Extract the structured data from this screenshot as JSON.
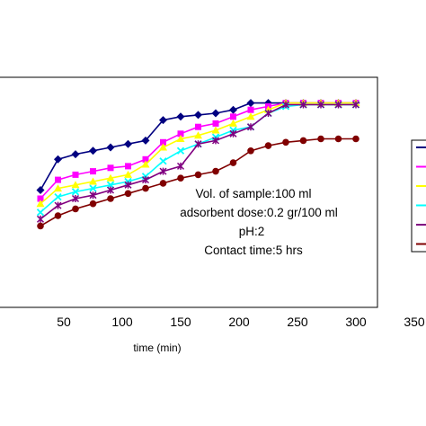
{
  "chart_data": {
    "type": "line",
    "title": "",
    "xlabel": "time (min)",
    "ylabel": "",
    "xlim": [
      0,
      350
    ],
    "ylim": [
      0,
      100
    ],
    "x_ticks": [
      "50",
      "100",
      "150",
      "200",
      "250",
      "300",
      "350"
    ],
    "grid": false,
    "legend_position": "right",
    "annotations": [
      "Vol. of sample:100 ml",
      "adsorbent dose:0.2 gr/100 ml",
      "pH:2",
      "Contact time:5 hrs"
    ],
    "series": [
      {
        "color": "#000080",
        "marker": "diamond",
        "x": [
          30,
          45,
          60,
          75,
          90,
          105,
          120,
          135,
          150,
          165,
          180,
          195,
          210,
          225,
          240,
          255,
          270,
          285,
          300
        ],
        "y": [
          35,
          53,
          56,
          58,
          60,
          62,
          64,
          76,
          78,
          79,
          80,
          82,
          86,
          86,
          86,
          86,
          86,
          86,
          86
        ]
      },
      {
        "color": "#FF00FF",
        "marker": "square",
        "x": [
          30,
          45,
          60,
          75,
          90,
          105,
          120,
          135,
          150,
          165,
          180,
          195,
          210,
          225,
          240,
          255,
          270,
          285,
          300
        ],
        "y": [
          30,
          41,
          44,
          46,
          48,
          49,
          53,
          63,
          68,
          72,
          74,
          78,
          82,
          84,
          86,
          86,
          86,
          86,
          86
        ]
      },
      {
        "color": "#FFFF00",
        "marker": "triangle",
        "x": [
          30,
          45,
          60,
          75,
          90,
          105,
          120,
          135,
          150,
          165,
          180,
          195,
          210,
          225,
          240,
          255,
          270,
          285,
          300
        ],
        "y": [
          27,
          36,
          38,
          40,
          42,
          44,
          50,
          60,
          65,
          67,
          70,
          74,
          78,
          82,
          86,
          86,
          86,
          86,
          86
        ]
      },
      {
        "color": "#00FFFF",
        "marker": "x",
        "x": [
          30,
          45,
          60,
          75,
          90,
          105,
          120,
          135,
          150,
          165,
          180,
          195,
          210,
          225,
          240,
          255,
          270,
          285,
          300
        ],
        "y": [
          22,
          31,
          34,
          36,
          38,
          40,
          43,
          52,
          58,
          62,
          66,
          70,
          72,
          80,
          84,
          85,
          85,
          85,
          85
        ]
      },
      {
        "color": "#800080",
        "marker": "star",
        "x": [
          30,
          45,
          60,
          75,
          90,
          105,
          120,
          135,
          150,
          165,
          180,
          195,
          210,
          225,
          240,
          255,
          270,
          285,
          300
        ],
        "y": [
          18,
          26,
          30,
          32,
          35,
          38,
          41,
          46,
          49,
          62,
          64,
          68,
          72,
          80,
          85,
          85,
          85,
          85,
          85
        ]
      },
      {
        "color": "#800000",
        "marker": "circle",
        "x": [
          30,
          45,
          60,
          75,
          90,
          105,
          120,
          135,
          150,
          165,
          180,
          195,
          210,
          225,
          240,
          255,
          270,
          285,
          300
        ],
        "y": [
          14,
          20,
          24,
          27,
          30,
          33,
          36,
          39,
          42,
          44,
          46,
          51,
          58,
          61,
          63,
          64,
          65,
          65,
          65
        ]
      }
    ]
  }
}
